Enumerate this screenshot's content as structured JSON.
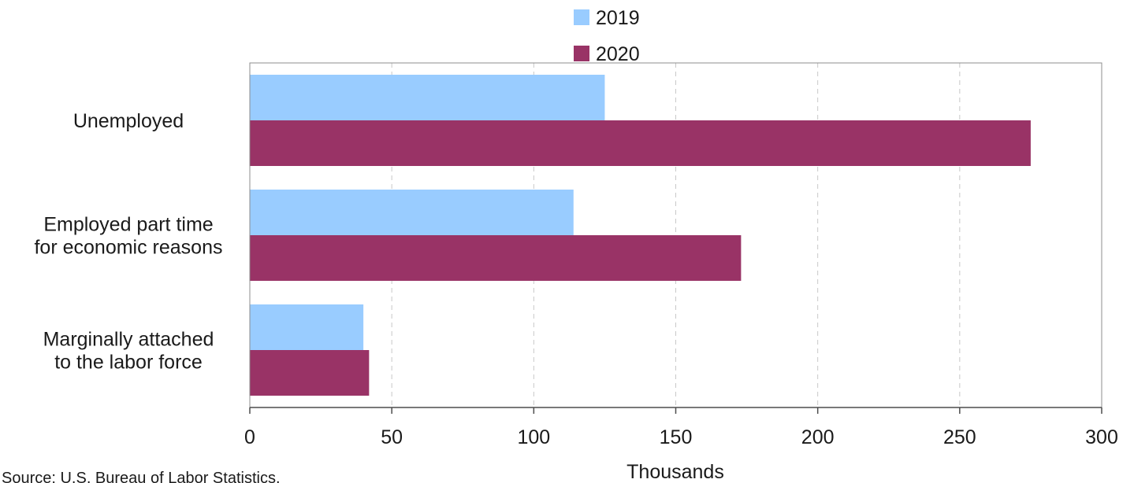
{
  "chart_data": {
    "type": "bar",
    "orientation": "horizontal",
    "categories": [
      [
        "Unemployed"
      ],
      [
        "Employed part time",
        "for economic reasons"
      ],
      [
        "Marginally attached",
        "to the labor force"
      ]
    ],
    "series": [
      {
        "name": "2019",
        "color": "#99ccff",
        "values": [
          125,
          114,
          40
        ]
      },
      {
        "name": "2020",
        "color": "#993366",
        "values": [
          275,
          173,
          42
        ]
      }
    ],
    "xlabel": "Thousands",
    "xlim": [
      0,
      300
    ],
    "xticks": [
      0,
      50,
      100,
      150,
      200,
      250,
      300
    ],
    "grid": "vertical-dashed",
    "legend_position": "top-center",
    "source": "Source: U.S. Bureau of Labor Statistics."
  }
}
